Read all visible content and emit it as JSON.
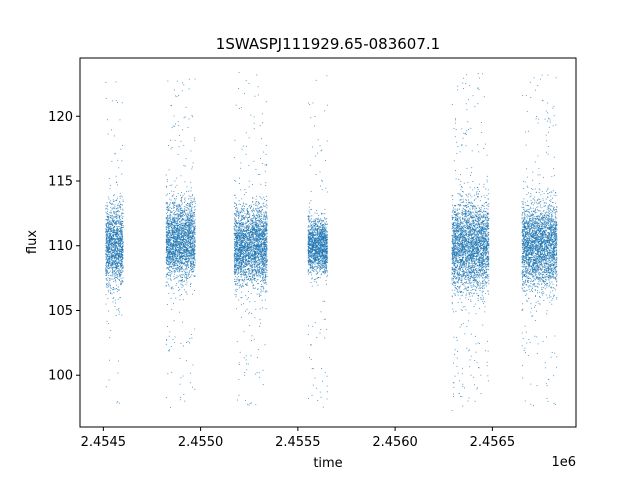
{
  "chart_data": {
    "type": "scatter",
    "title": "1SWASPJ111929.65-083607.1",
    "xlabel": "time",
    "ylabel": "flux",
    "x_offset_label": "1e6",
    "xlim": [
      2.45438,
      2.45693
    ],
    "ylim": [
      96.0,
      124.5
    ],
    "x_ticks": [
      2.4545,
      2.455,
      2.4555,
      2.456,
      2.4565
    ],
    "x_tick_labels": [
      "2.4545",
      "2.4550",
      "2.4555",
      "2.4560",
      "2.4565"
    ],
    "y_ticks": [
      100,
      105,
      110,
      115,
      120
    ],
    "y_tick_labels": [
      "100",
      "105",
      "110",
      "115",
      "120"
    ],
    "grid": false,
    "marker_color": "#1f77b4",
    "series": [
      {
        "observing_seasons": [
          {
            "x_start": 2.45451,
            "x_end": 2.4546,
            "y_center": 110.0,
            "y_spread": 3.2,
            "y_min": 97.5,
            "y_max": 123.5
          },
          {
            "x_start": 2.45482,
            "x_end": 2.45497,
            "y_center": 110.5,
            "y_spread": 3.0,
            "y_min": 97.5,
            "y_max": 123.0
          },
          {
            "x_start": 2.45517,
            "x_end": 2.45534,
            "y_center": 110.0,
            "y_spread": 3.0,
            "y_min": 97.3,
            "y_max": 123.5
          },
          {
            "x_start": 2.45555,
            "x_end": 2.45565,
            "y_center": 110.0,
            "y_spread": 2.0,
            "y_min": 97.5,
            "y_max": 123.5
          },
          {
            "x_start": 2.45629,
            "x_end": 2.45648,
            "y_center": 110.0,
            "y_spread": 3.5,
            "y_min": 97.3,
            "y_max": 123.5
          },
          {
            "x_start": 2.45665,
            "x_end": 2.45683,
            "y_center": 110.0,
            "y_spread": 3.2,
            "y_min": 97.5,
            "y_max": 123.5
          }
        ]
      }
    ]
  }
}
